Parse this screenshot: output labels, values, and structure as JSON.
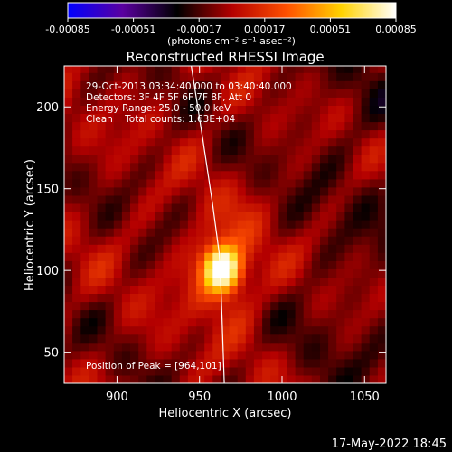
{
  "chart_data": {
    "type": "heatmap",
    "title": "Reconstructed RHESSI Image",
    "xlabel": "Heliocentric X (arcsec)",
    "ylabel": "Heliocentric Y (arcsec)",
    "xlim": [
      868,
      1063
    ],
    "ylim": [
      31,
      225
    ],
    "x_ticks": [
      900,
      950,
      1000,
      1050
    ],
    "y_ticks": [
      50,
      100,
      150,
      200
    ],
    "colorbar": {
      "min": -0.00085,
      "max": 0.00085,
      "ticks": [
        "-0.00085",
        "-0.00051",
        "-0.00017",
        "0.00017",
        "0.00051",
        "0.00085"
      ],
      "unit_label": "(photons cm⁻² s⁻¹ asec⁻²)",
      "colormap": [
        "#0000ff",
        "#5a00a0",
        "#000000",
        "#b40000",
        "#ff5000",
        "#ffd200",
        "#ffffff"
      ]
    },
    "peak": {
      "x": 964,
      "y": 101,
      "value": 0.00085
    },
    "limb_points": [
      [
        945,
        225
      ],
      [
        952,
        180
      ],
      [
        958,
        140
      ],
      [
        962,
        110
      ],
      [
        963,
        90
      ],
      [
        964,
        60
      ],
      [
        965,
        31
      ]
    ],
    "annotations": {
      "time": "29-Oct-2013 03:34:40.000 to 03:40:40.000",
      "detectors": "Detectors: 3F 4F 5F 6F 7F 8F, Att 0",
      "energy": "Energy Range: 25.0 - 50.0 keV",
      "method": "Clean    Total counts: 1.63E+04",
      "peak_text": "Position of Peak = [964,101]"
    }
  },
  "footer_timestamp": "17-May-2022 18:45"
}
